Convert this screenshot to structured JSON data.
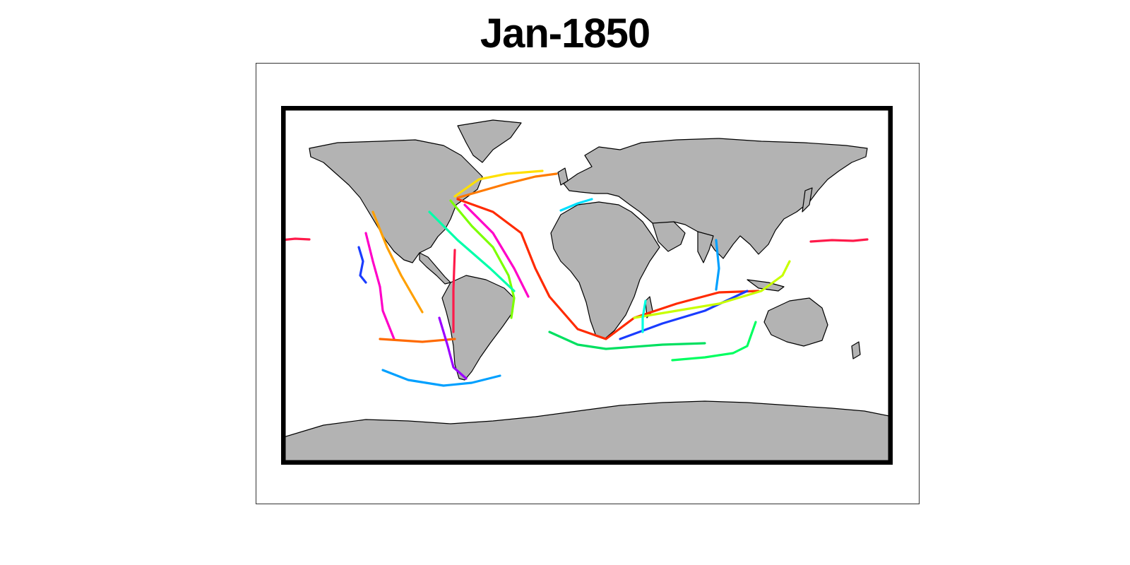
{
  "title": "Jan-1850",
  "colors": {
    "land": "#b3b3b3",
    "coast": "#000000",
    "border": "#000000",
    "background": "#ffffff"
  }
}
